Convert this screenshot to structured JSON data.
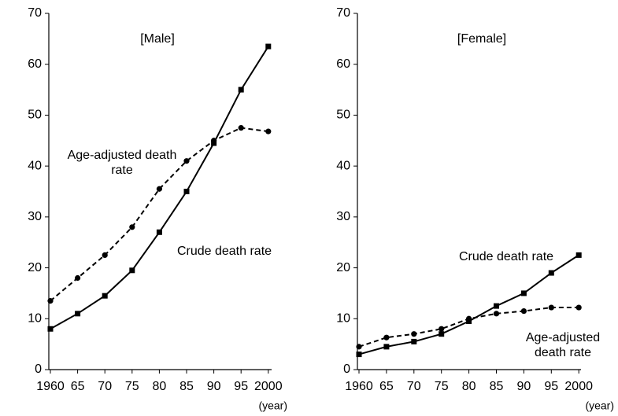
{
  "chart_data": [
    {
      "type": "line",
      "title": "[Male]",
      "xlabel": "(year)",
      "categories": [
        "1960",
        "65",
        "70",
        "75",
        "80",
        "85",
        "90",
        "95",
        "2000"
      ],
      "ylim": [
        0,
        70
      ],
      "yticks": [
        0,
        10,
        20,
        30,
        40,
        50,
        60,
        70
      ],
      "series": [
        {
          "name": "Crude death rate",
          "color": "#000000",
          "marker": "square",
          "dash": false,
          "values": [
            8,
            11,
            14.5,
            19.5,
            27,
            35,
            44.5,
            55,
            63.5
          ]
        },
        {
          "name": "Age-adjusted death rate",
          "color": "#000000",
          "marker": "circle",
          "dash": true,
          "values": [
            13.5,
            18,
            22.5,
            28,
            35.5,
            41,
            45,
            47.5,
            46.8
          ]
        }
      ]
    },
    {
      "type": "line",
      "title": "[Female]",
      "xlabel": "(year)",
      "categories": [
        "1960",
        "65",
        "70",
        "75",
        "80",
        "85",
        "90",
        "95",
        "2000"
      ],
      "ylim": [
        0,
        70
      ],
      "yticks": [
        0,
        10,
        20,
        30,
        40,
        50,
        60,
        70
      ],
      "series": [
        {
          "name": "Crude death rate",
          "color": "#000000",
          "marker": "square",
          "dash": false,
          "values": [
            3,
            4.5,
            5.5,
            7,
            9.5,
            12.5,
            15,
            19,
            22.5
          ]
        },
        {
          "name": "Age-adjusted death rate",
          "color": "#000000",
          "marker": "circle",
          "dash": true,
          "values": [
            4.5,
            6.3,
            7,
            8,
            10,
            11,
            11.5,
            12.2,
            12.2
          ]
        }
      ]
    }
  ]
}
